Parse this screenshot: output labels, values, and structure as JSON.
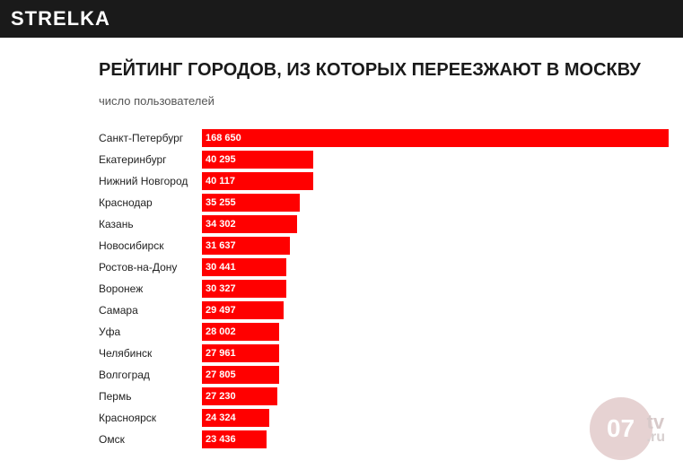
{
  "header": {
    "brand": "STRELKA"
  },
  "chart": {
    "type": "bar",
    "title": "РЕЙТИНГ ГОРОДОВ, ИЗ КОТОРЫХ ПЕРЕЕЗЖАЮТ В МОСКВУ",
    "subtitle": "число пользователей",
    "bar_color": "#ff0000",
    "value_color": "#ffffff",
    "label_color": "#222222",
    "background_color": "#ffffff",
    "label_fontsize": 12,
    "value_fontsize": 11,
    "max_value": 168650,
    "rows": [
      {
        "city": "Санкт-Петербург",
        "value": 168650,
        "value_fmt": "168 650"
      },
      {
        "city": "Екатеринбург",
        "value": 40295,
        "value_fmt": "40 295"
      },
      {
        "city": "Нижний Новгород",
        "value": 40117,
        "value_fmt": "40 117"
      },
      {
        "city": "Краснодар",
        "value": 35255,
        "value_fmt": "35 255"
      },
      {
        "city": "Казань",
        "value": 34302,
        "value_fmt": "34 302"
      },
      {
        "city": "Новосибирск",
        "value": 31637,
        "value_fmt": "31 637"
      },
      {
        "city": "Ростов-на-Дону",
        "value": 30441,
        "value_fmt": "30 441"
      },
      {
        "city": "Воронеж",
        "value": 30327,
        "value_fmt": "30 327"
      },
      {
        "city": "Самара",
        "value": 29497,
        "value_fmt": "29 497"
      },
      {
        "city": "Уфа",
        "value": 28002,
        "value_fmt": "28 002"
      },
      {
        "city": "Челябинск",
        "value": 27961,
        "value_fmt": "27 961"
      },
      {
        "city": "Волгоград",
        "value": 27805,
        "value_fmt": "27 805"
      },
      {
        "city": "Пермь",
        "value": 27230,
        "value_fmt": "27 230"
      },
      {
        "city": "Красноярск",
        "value": 24324,
        "value_fmt": "24 324"
      },
      {
        "city": "Омск",
        "value": 23436,
        "value_fmt": "23 436"
      }
    ]
  },
  "watermark": {
    "circle_text": "07",
    "tv": "tv",
    "ru": ".ru",
    "circle_bg": "#cfa7a7",
    "text_color": "#b09494"
  }
}
